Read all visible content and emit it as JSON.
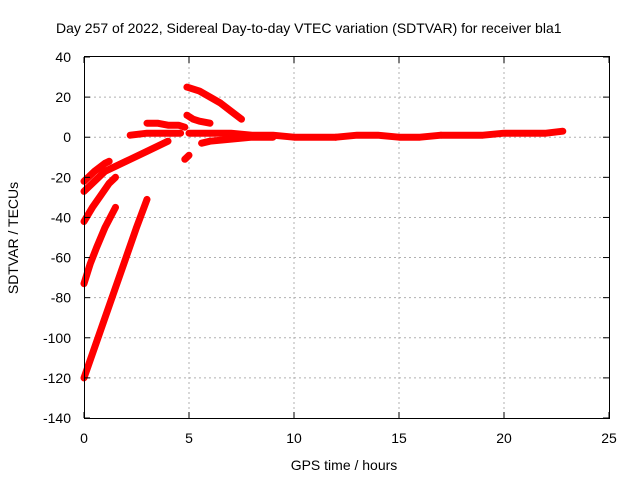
{
  "chart_data": {
    "type": "line",
    "title": "Day 257 of 2022, Sidereal Day-to-day VTEC variation (SDTVAR) for receiver bla1",
    "xlabel": "GPS time / hours",
    "ylabel": "SDTVAR / TECUs",
    "xlim": [
      0,
      25
    ],
    "ylim": [
      -140,
      40
    ],
    "xticks": [
      0,
      5,
      10,
      15,
      20,
      25
    ],
    "yticks": [
      -140,
      -120,
      -100,
      -80,
      -60,
      -40,
      -20,
      0,
      20,
      40
    ],
    "xtick_labels": [
      "0",
      "5",
      "10",
      "15",
      "20",
      "25"
    ],
    "ytick_labels": [
      "-140",
      "-120",
      "-100",
      "-80",
      "-60",
      "-40",
      "-20",
      "0",
      "20",
      "40"
    ],
    "grid": true,
    "line_color": "#ff0000",
    "series": [
      {
        "x": [
          0.0,
          0.5,
          1.0,
          1.2
        ],
        "y": [
          -22,
          -17,
          -13,
          -12
        ]
      },
      {
        "x": [
          0.0,
          0.5,
          1.0,
          2.0,
          3.0,
          4.0
        ],
        "y": [
          -27,
          -22,
          -17,
          -12,
          -7,
          -2
        ]
      },
      {
        "x": [
          0.0,
          0.4,
          0.8,
          1.2,
          1.5
        ],
        "y": [
          -42,
          -35,
          -29,
          -23,
          -20
        ]
      },
      {
        "x": [
          0.0,
          0.3,
          0.6,
          1.0,
          1.5
        ],
        "y": [
          -73,
          -63,
          -55,
          -45,
          -35
        ]
      },
      {
        "x": [
          0.0,
          0.5,
          1.0,
          1.5,
          2.0,
          2.5,
          3.0
        ],
        "y": [
          -120,
          -105,
          -90,
          -75,
          -60,
          -45,
          -31
        ]
      },
      {
        "x": [
          2.2,
          3.0,
          4.0,
          4.6
        ],
        "y": [
          1,
          2,
          2,
          2
        ]
      },
      {
        "x": [
          3.0,
          3.5,
          4.0,
          4.5,
          4.8
        ],
        "y": [
          7,
          7,
          6,
          6,
          5
        ]
      },
      {
        "x": [
          4.9,
          5.5,
          6.0,
          6.5,
          7.0,
          7.5
        ],
        "y": [
          25,
          23,
          20,
          17,
          13,
          9
        ]
      },
      {
        "x": [
          4.9,
          5.2,
          5.5,
          6.0
        ],
        "y": [
          11,
          9,
          8,
          7
        ]
      },
      {
        "x": [
          4.8,
          5.0
        ],
        "y": [
          -11,
          -9
        ]
      },
      {
        "x": [
          5.6,
          6.0,
          7.0,
          8.0,
          9.0
        ],
        "y": [
          -3,
          -2,
          -1,
          0,
          0
        ]
      },
      {
        "x": [
          5.0,
          6.0,
          7.0,
          8.0,
          9.0,
          10.0,
          11.0,
          12.0
        ],
        "y": [
          2,
          2,
          2,
          1,
          1,
          0,
          0,
          0
        ]
      },
      {
        "x": [
          12.0,
          13.0,
          14.0,
          15.0,
          16.0,
          17.0
        ],
        "y": [
          0,
          1,
          1,
          0,
          0,
          1
        ]
      },
      {
        "x": [
          17.0,
          18.0,
          19.0,
          20.0,
          21.0,
          22.0,
          22.8
        ],
        "y": [
          1,
          1,
          1,
          2,
          2,
          2,
          3
        ]
      }
    ]
  }
}
